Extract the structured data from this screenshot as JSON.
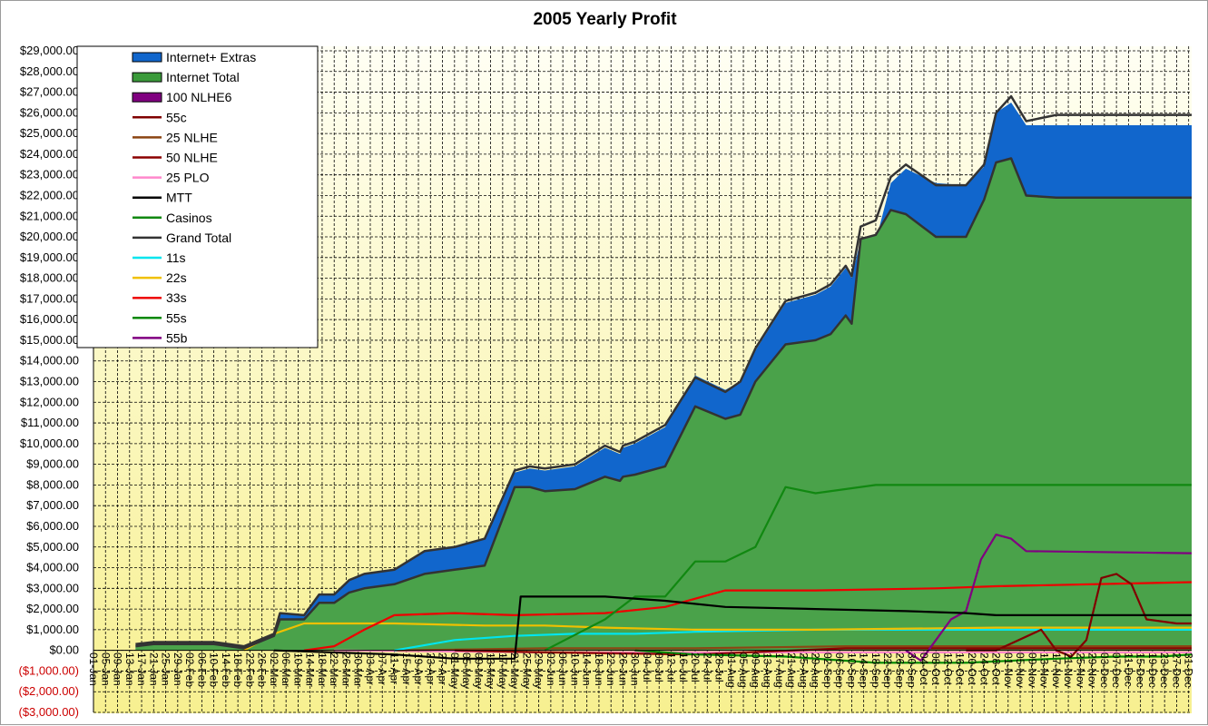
{
  "chart_data": {
    "type": "area",
    "title": "2005 Yearly Profit",
    "xlabel": "",
    "ylabel": "",
    "ylim": [
      -3000,
      29000
    ],
    "ytick_labels": [
      "$29,000.00",
      "$28,000.00",
      "$27,000.00",
      "$26,000.00",
      "$25,000.00",
      "$24,000.00",
      "$23,000.00",
      "$22,000.00",
      "$21,000.00",
      "$20,000.00",
      "$19,000.00",
      "$18,000.00",
      "$17,000.00",
      "$16,000.00",
      "$15,000.00",
      "$14,000.00",
      "$13,000.00",
      "$12,000.00",
      "$11,000.00",
      "$10,000.00",
      "$9,000.00",
      "$8,000.00",
      "$7,000.00",
      "$6,000.00",
      "$5,000.00",
      "$4,000.00",
      "$3,000.00",
      "$2,000.00",
      "$1,000.00",
      "$0.00",
      "($1,000.00)",
      "($2,000.00)",
      "($3,000.00)"
    ],
    "x_tick_labels": [
      "01-Jan",
      "05-Jan",
      "09-Jan",
      "13-Jan",
      "17-Jan",
      "21-Jan",
      "25-Jan",
      "29-Jan",
      "02-Feb",
      "06-Feb",
      "10-Feb",
      "14-Feb",
      "18-Feb",
      "22-Feb",
      "26-Feb",
      "02-Mar",
      "06-Mar",
      "10-Mar",
      "14-Mar",
      "18-Mar",
      "22-Mar",
      "26-Mar",
      "30-Mar",
      "03-Apr",
      "07-Apr",
      "11-Apr",
      "15-Apr",
      "19-Apr",
      "23-Apr",
      "27-Apr",
      "01-May",
      "05-May",
      "09-May",
      "13-May",
      "17-May",
      "21-May",
      "25-May",
      "29-May",
      "02-Jun",
      "06-Jun",
      "10-Jun",
      "14-Jun",
      "18-Jun",
      "22-Jun",
      "26-Jun",
      "30-Jun",
      "04-Jul",
      "08-Jul",
      "12-Jul",
      "16-Jul",
      "20-Jul",
      "24-Jul",
      "28-Jul",
      "01-Aug",
      "05-Aug",
      "09-Aug",
      "13-Aug",
      "17-Aug",
      "21-Aug",
      "25-Aug",
      "29-Aug",
      "02-Sep",
      "06-Sep",
      "10-Sep",
      "14-Sep",
      "18-Sep",
      "22-Sep",
      "26-Sep",
      "30-Sep",
      "04-Oct",
      "08-Oct",
      "12-Oct",
      "16-Oct",
      "20-Oct",
      "24-Oct",
      "28-Oct",
      "01-Nov",
      "05-Nov",
      "09-Nov",
      "13-Nov",
      "17-Nov",
      "21-Nov",
      "25-Nov",
      "29-Nov",
      "03-Dec",
      "07-Dec",
      "11-Dec",
      "15-Dec",
      "19-Dec",
      "23-Dec",
      "27-Dec",
      "31-Dec"
    ],
    "legend_position": "top-left",
    "grid": true,
    "legend": [
      {
        "name": "Internet+ Extras",
        "color": "#1166cc",
        "kind": "area"
      },
      {
        "name": "Internet Total",
        "color": "#3a9a3a",
        "kind": "area"
      },
      {
        "name": "100 NLHE6",
        "color": "#800080",
        "kind": "area"
      },
      {
        "name": "55c",
        "color": "#800000",
        "kind": "line"
      },
      {
        "name": "25 NLHE",
        "color": "#8b4513",
        "kind": "line"
      },
      {
        "name": "50 NLHE",
        "color": "#8b0000",
        "kind": "line"
      },
      {
        "name": "25 PLO",
        "color": "#ff88cc",
        "kind": "line"
      },
      {
        "name": "MTT",
        "color": "#000000",
        "kind": "line"
      },
      {
        "name": "Casinos",
        "color": "#118811",
        "kind": "line"
      },
      {
        "name": "Grand Total",
        "color": "#333333",
        "kind": "line"
      },
      {
        "name": "11s",
        "color": "#00e5ee",
        "kind": "line"
      },
      {
        "name": "22s",
        "color": "#f0c000",
        "kind": "line"
      },
      {
        "name": "33s",
        "color": "#ee0000",
        "kind": "line"
      },
      {
        "name": "55s",
        "color": "#008800",
        "kind": "line"
      },
      {
        "name": "55b",
        "color": "#800080",
        "kind": "line"
      }
    ],
    "series": [
      {
        "name": "Internet+ Extras",
        "x": [
          14,
          20,
          30,
          40,
          50,
          60,
          62,
          70,
          75,
          80,
          85,
          90,
          100,
          110,
          120,
          130,
          140,
          145,
          150,
          160,
          170,
          175,
          176,
          180,
          190,
          200,
          210,
          215,
          220,
          230,
          240,
          245,
          250,
          252,
          255,
          260,
          265,
          270,
          280,
          290,
          296,
          300,
          305,
          310,
          320,
          330,
          340,
          345,
          350,
          355,
          360,
          365
        ],
        "values": [
          300,
          400,
          400,
          400,
          200,
          800,
          1800,
          1700,
          2700,
          2700,
          3400,
          3700,
          3900,
          4800,
          5000,
          5400,
          8600,
          8800,
          8700,
          8900,
          9800,
          9500,
          9800,
          10000,
          10800,
          13300,
          12600,
          13000,
          14500,
          16800,
          17200,
          17600,
          18500,
          18000,
          19900,
          19800,
          22600,
          23300,
          22600,
          22500,
          23400,
          26000,
          26500,
          25400,
          25400,
          25400,
          25400,
          25400,
          25400,
          25400,
          25400,
          25400
        ]
      },
      {
        "name": "Internet Total",
        "x": [
          14,
          20,
          30,
          40,
          50,
          60,
          62,
          70,
          75,
          80,
          85,
          90,
          100,
          110,
          120,
          130,
          140,
          145,
          150,
          160,
          170,
          175,
          176,
          180,
          190,
          200,
          210,
          215,
          220,
          230,
          240,
          245,
          250,
          252,
          255,
          260,
          265,
          270,
          280,
          290,
          296,
          300,
          305,
          310,
          320,
          330,
          340,
          345,
          350,
          355,
          360,
          365
        ],
        "values": [
          200,
          300,
          300,
          300,
          100,
          700,
          1500,
          1500,
          2300,
          2300,
          2800,
          3000,
          3200,
          3700,
          3900,
          4100,
          7900,
          7900,
          7700,
          7800,
          8400,
          8200,
          8400,
          8500,
          8900,
          11800,
          11200,
          11400,
          13000,
          14800,
          15000,
          15300,
          16200,
          15800,
          19900,
          20100,
          21300,
          21100,
          20000,
          20000,
          21800,
          23600,
          23800,
          22000,
          21900,
          21900,
          21900,
          21900,
          21900,
          21900,
          21900,
          21900
        ]
      },
      {
        "name": "Grand Total",
        "x": [
          14,
          20,
          30,
          40,
          50,
          60,
          62,
          70,
          75,
          80,
          85,
          90,
          100,
          110,
          120,
          130,
          140,
          145,
          150,
          160,
          170,
          175,
          176,
          180,
          190,
          200,
          210,
          215,
          220,
          230,
          240,
          245,
          250,
          252,
          255,
          260,
          265,
          270,
          280,
          290,
          296,
          300,
          305,
          310,
          320,
          330,
          340,
          345,
          350,
          355,
          360,
          365
        ],
        "values": [
          300,
          400,
          400,
          400,
          200,
          800,
          1800,
          1700,
          2700,
          2700,
          3400,
          3700,
          3900,
          4800,
          5000,
          5400,
          8700,
          8900,
          8800,
          9000,
          9900,
          9600,
          9900,
          10100,
          10900,
          13200,
          12500,
          13000,
          14600,
          16900,
          17300,
          17700,
          18600,
          18100,
          20500,
          20800,
          22900,
          23500,
          22500,
          22500,
          23500,
          26000,
          26800,
          25600,
          25900,
          25900,
          25900,
          25900,
          25900,
          25900,
          25900,
          25900
        ]
      },
      {
        "name": "MTT",
        "x": [
          60,
          100,
          120,
          140,
          142,
          170,
          190,
          210,
          240,
          270,
          290,
          300,
          365
        ],
        "values": [
          0,
          -200,
          -400,
          -400,
          2600,
          2600,
          2400,
          2100,
          2000,
          1900,
          1800,
          1700,
          1700
        ]
      },
      {
        "name": "Casinos",
        "x": [
          150,
          170,
          180,
          190,
          200,
          210,
          220,
          230,
          240,
          260,
          280,
          300,
          365
        ],
        "values": [
          0,
          1500,
          2600,
          2600,
          4300,
          4300,
          5000,
          7900,
          7600,
          8000,
          8000,
          8000,
          8000
        ]
      },
      {
        "name": "11s",
        "x": [
          100,
          120,
          140,
          160,
          180,
          200,
          240,
          270,
          300,
          365
        ],
        "values": [
          0,
          500,
          700,
          800,
          800,
          900,
          1000,
          1000,
          1000,
          1000
        ]
      },
      {
        "name": "22s",
        "x": [
          50,
          60,
          70,
          80,
          100,
          130,
          150,
          170,
          200,
          240,
          300,
          365
        ],
        "values": [
          0,
          800,
          1300,
          1300,
          1300,
          1200,
          1200,
          1100,
          1000,
          1000,
          1100,
          1100
        ]
      },
      {
        "name": "33s",
        "x": [
          70,
          80,
          90,
          100,
          120,
          140,
          170,
          190,
          210,
          240,
          280,
          300,
          365
        ],
        "values": [
          0,
          200,
          1000,
          1700,
          1800,
          1700,
          1800,
          2100,
          2900,
          2900,
          3000,
          3100,
          3300
        ]
      },
      {
        "name": "55s",
        "x": [
          180,
          200,
          230,
          260,
          290,
          320,
          340,
          355,
          365
        ],
        "values": [
          0,
          -200,
          -300,
          -600,
          -600,
          -400,
          -300,
          -300,
          -200
        ]
      },
      {
        "name": "55b",
        "x": [
          270,
          275,
          280,
          285,
          290,
          295,
          300,
          305,
          310,
          365
        ],
        "values": [
          0,
          -500,
          500,
          1500,
          1900,
          4400,
          5600,
          5400,
          4800,
          4700
        ]
      },
      {
        "name": "55c",
        "x": [
          290,
          300,
          315,
          320,
          325,
          330,
          335,
          340,
          345,
          350,
          360,
          365
        ],
        "values": [
          0,
          0,
          1000,
          0,
          -300,
          500,
          3500,
          3700,
          3200,
          1500,
          1300,
          1300
        ]
      },
      {
        "name": "25 NLHE",
        "x": [
          100,
          150,
          200,
          250,
          300,
          365
        ],
        "values": [
          0,
          100,
          100,
          200,
          200,
          200
        ]
      },
      {
        "name": "50 NLHE",
        "x": [
          120,
          150,
          200,
          250,
          300,
          365
        ],
        "values": [
          0,
          -100,
          -200,
          100,
          100,
          100
        ]
      },
      {
        "name": "25 PLO",
        "x": [
          80,
          150,
          200,
          250,
          300,
          365
        ],
        "values": [
          0,
          -100,
          -100,
          -100,
          -100,
          -100
        ]
      }
    ]
  }
}
